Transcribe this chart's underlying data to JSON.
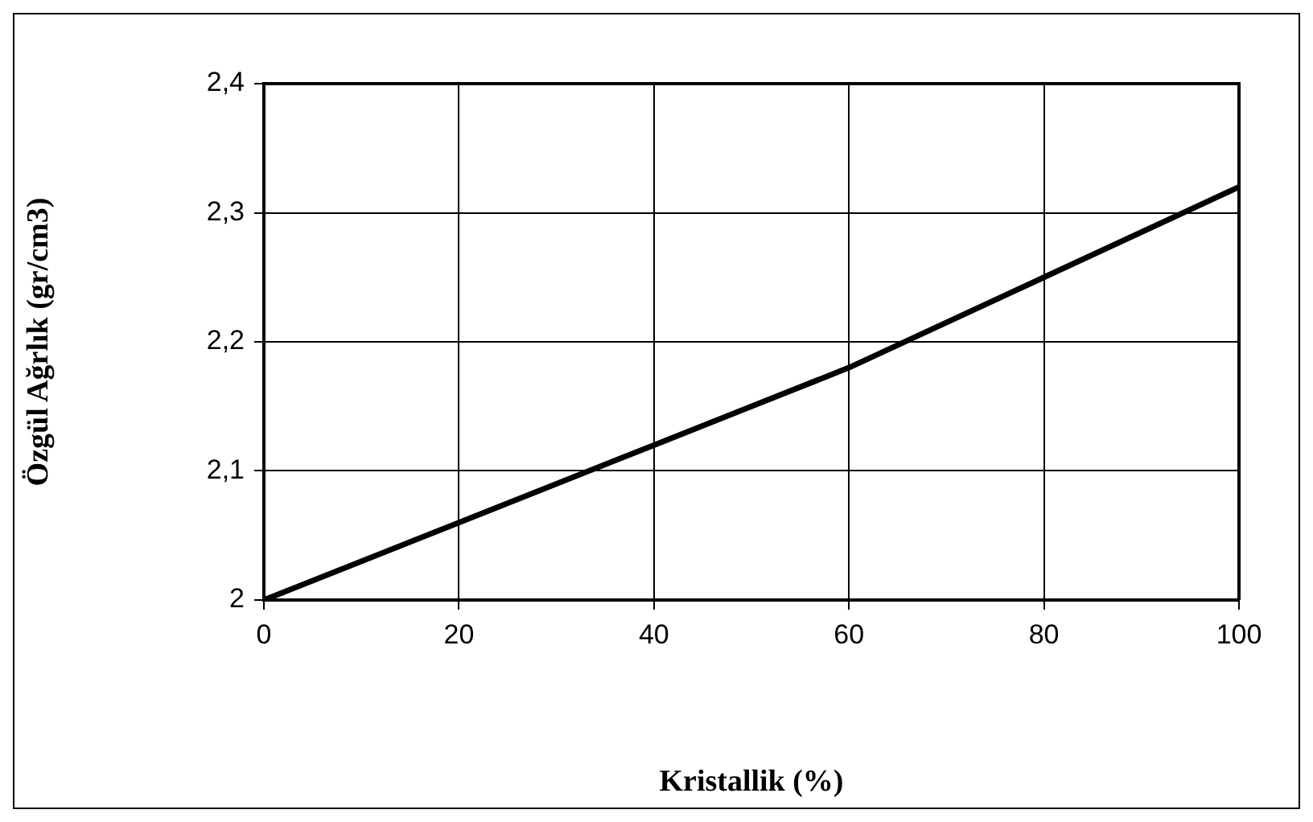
{
  "chart_data": {
    "type": "line",
    "xlabel": "Kristallik (%)",
    "ylabel": "Özgül Ağrlık (gr/cm3)",
    "x": [
      0,
      20,
      40,
      60,
      80,
      100
    ],
    "series": [
      {
        "color": "#000000",
        "values": [
          2.0,
          2.06,
          2.12,
          2.18,
          2.25,
          2.32
        ]
      }
    ],
    "xlim": [
      0,
      100
    ],
    "xticks": [
      0,
      20,
      40,
      60,
      80,
      100
    ],
    "ylim": [
      2,
      2.4
    ],
    "yticks": [
      2,
      {
        "value": 2.1,
        "label": "2,1"
      },
      {
        "value": 2.2,
        "label": "2,2"
      },
      {
        "value": 2.3,
        "label": "2,3"
      },
      {
        "value": 2.4,
        "label": "2,4"
      }
    ],
    "grid": true,
    "legend": false,
    "marker": "none",
    "line_style": "solid"
  }
}
